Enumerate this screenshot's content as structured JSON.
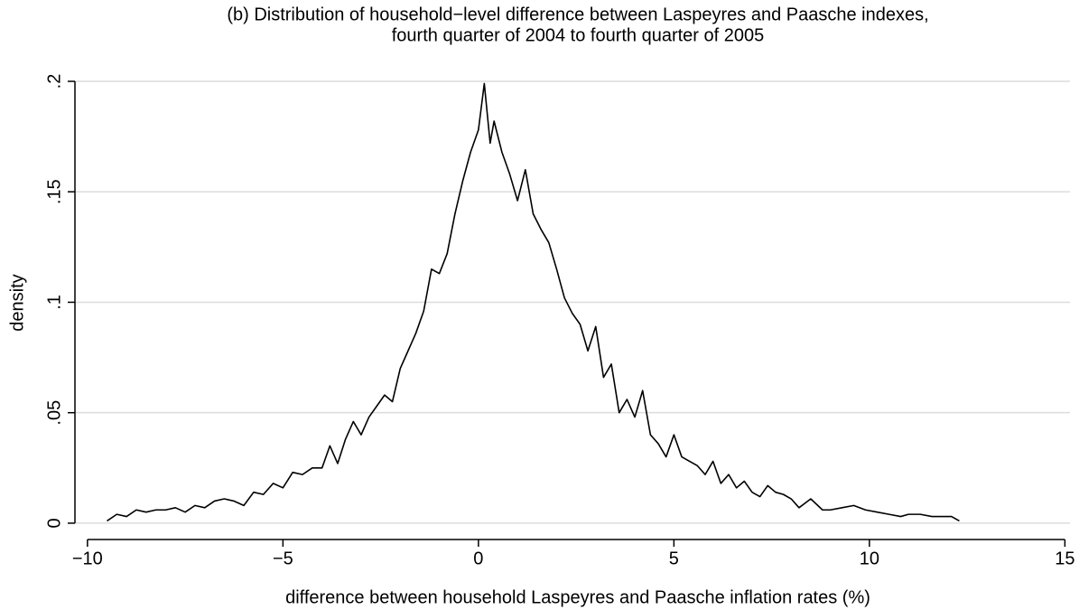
{
  "chart_data": {
    "type": "line",
    "title": [
      "(b) Distribution of household−level difference between Laspeyres and Paasche indexes,",
      "fourth quarter of 2004 to fourth quarter of 2005"
    ],
    "x_label": "difference between household Laspeyres and Paasche inflation rates (%)",
    "y_label": "density",
    "xlim": [
      -10.32,
      15.13
    ],
    "ylim": [
      -0.0074,
      0.209
    ],
    "xticks": [
      {
        "value": -10,
        "label": "−10"
      },
      {
        "value": -5,
        "label": "−5"
      },
      0,
      5,
      10,
      15
    ],
    "yticks": [
      0,
      {
        "value": 0.05,
        "label": ".05"
      },
      {
        "value": 0.1,
        "label": ".1"
      },
      {
        "value": 0.15,
        "label": ".15"
      },
      {
        "value": 0.2,
        "label": ".2"
      }
    ],
    "grid": true,
    "series": [
      {
        "color": "#000000",
        "x": [
          -9.5,
          -9.25,
          -9,
          -8.75,
          -8.5,
          -8.25,
          -8,
          -7.75,
          -7.5,
          -7.25,
          -7,
          -6.75,
          -6.5,
          -6.25,
          -6,
          -5.75,
          -5.5,
          -5.25,
          -5,
          -4.75,
          -4.5,
          -4.25,
          -4,
          -3.8,
          -3.6,
          -3.4,
          -3.2,
          -3,
          -2.8,
          -2.6,
          -2.4,
          -2.2,
          -2,
          -1.8,
          -1.6,
          -1.4,
          -1.2,
          -1,
          -0.8,
          -0.6,
          -0.4,
          -0.2,
          0,
          0.15,
          0.3,
          0.4,
          0.6,
          0.8,
          1,
          1.2,
          1.4,
          1.6,
          1.8,
          2,
          2.2,
          2.4,
          2.6,
          2.8,
          3,
          3.2,
          3.4,
          3.6,
          3.8,
          4,
          4.2,
          4.4,
          4.6,
          4.8,
          5,
          5.2,
          5.4,
          5.6,
          5.8,
          6,
          6.2,
          6.4,
          6.6,
          6.8,
          7,
          7.2,
          7.4,
          7.6,
          7.8,
          8,
          8.2,
          8.5,
          8.8,
          9,
          9.3,
          9.6,
          9.9,
          10.2,
          10.5,
          10.8,
          11,
          11.3,
          11.6,
          11.9,
          12.1,
          12.3
        ],
        "values": [
          0.001,
          0.004,
          0.003,
          0.006,
          0.005,
          0.006,
          0.006,
          0.007,
          0.005,
          0.008,
          0.007,
          0.01,
          0.011,
          0.01,
          0.008,
          0.014,
          0.013,
          0.018,
          0.016,
          0.023,
          0.022,
          0.025,
          0.025,
          0.035,
          0.027,
          0.038,
          0.046,
          0.04,
          0.048,
          0.053,
          0.058,
          0.055,
          0.07,
          0.078,
          0.086,
          0.096,
          0.115,
          0.113,
          0.122,
          0.14,
          0.155,
          0.168,
          0.178,
          0.199,
          0.172,
          0.182,
          0.168,
          0.158,
          0.146,
          0.16,
          0.14,
          0.133,
          0.127,
          0.115,
          0.102,
          0.095,
          0.09,
          0.078,
          0.089,
          0.066,
          0.072,
          0.05,
          0.056,
          0.048,
          0.06,
          0.04,
          0.036,
          0.03,
          0.04,
          0.03,
          0.028,
          0.026,
          0.022,
          0.028,
          0.018,
          0.022,
          0.016,
          0.019,
          0.014,
          0.012,
          0.017,
          0.014,
          0.013,
          0.011,
          0.007,
          0.011,
          0.006,
          0.006,
          0.007,
          0.008,
          0.006,
          0.005,
          0.004,
          0.003,
          0.004,
          0.004,
          0.003,
          0.003,
          0.003,
          0.001
        ]
      }
    ]
  }
}
